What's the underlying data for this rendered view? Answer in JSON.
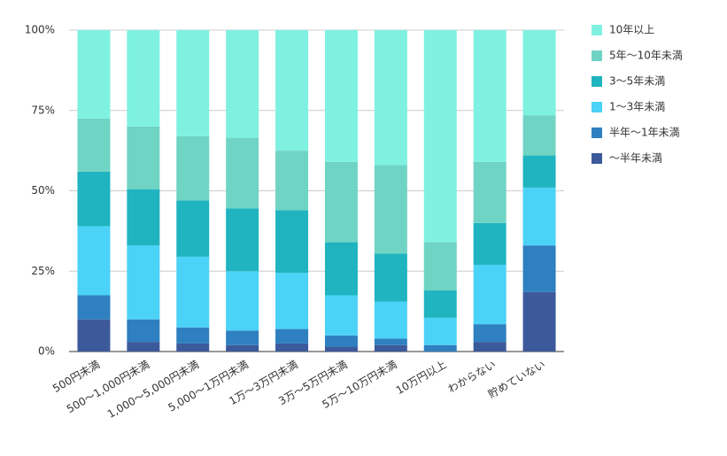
{
  "chart_data": {
    "type": "stacked_bar_100",
    "categories": [
      "500円未満",
      "500～1,000円未満",
      "1,000～5,000円未満",
      "5,000～1万円未満",
      "1万～3万円未満",
      "3万～5万円未満",
      "5万～10万円未満",
      "10万円以上",
      "わからない",
      "貯めていない"
    ],
    "series": [
      {
        "name": "～半年未満",
        "color": "#3c5a9b",
        "values": [
          10,
          3,
          2.5,
          2,
          2.5,
          1.5,
          2,
          0,
          3,
          18.5
        ]
      },
      {
        "name": "半年～1年未満",
        "color": "#2e80c0",
        "values": [
          7.5,
          7,
          5,
          4.5,
          4.5,
          3.5,
          2,
          2,
          5.5,
          14.5
        ]
      },
      {
        "name": "1～3年未満",
        "color": "#4bd2f7",
        "values": [
          21.5,
          23,
          22,
          18.5,
          17.5,
          12.5,
          11.5,
          8.5,
          18.5,
          18
        ]
      },
      {
        "name": "3～5年未満",
        "color": "#1fb4bf",
        "values": [
          17,
          17.5,
          17.5,
          19.5,
          19.5,
          16.5,
          15,
          8.5,
          13,
          10
        ]
      },
      {
        "name": "5年～10年未満",
        "color": "#6fd4c4",
        "values": [
          16.5,
          19.5,
          20,
          22,
          18.5,
          25,
          27.5,
          15,
          19,
          12.5
        ]
      },
      {
        "name": "10年以上",
        "color": "#7ff1e1",
        "values": [
          27.5,
          30,
          33,
          33.5,
          37.5,
          41,
          42,
          66,
          41,
          26.5
        ]
      }
    ],
    "ylim": [
      0,
      100
    ],
    "yticks": [
      {
        "value": 0,
        "label": "0%"
      },
      {
        "value": 25,
        "label": "25%"
      },
      {
        "value": 50,
        "label": "50%"
      },
      {
        "value": 75,
        "label": "75%"
      },
      {
        "value": 100,
        "label": "100%"
      }
    ],
    "grid": true,
    "legend": "right"
  }
}
